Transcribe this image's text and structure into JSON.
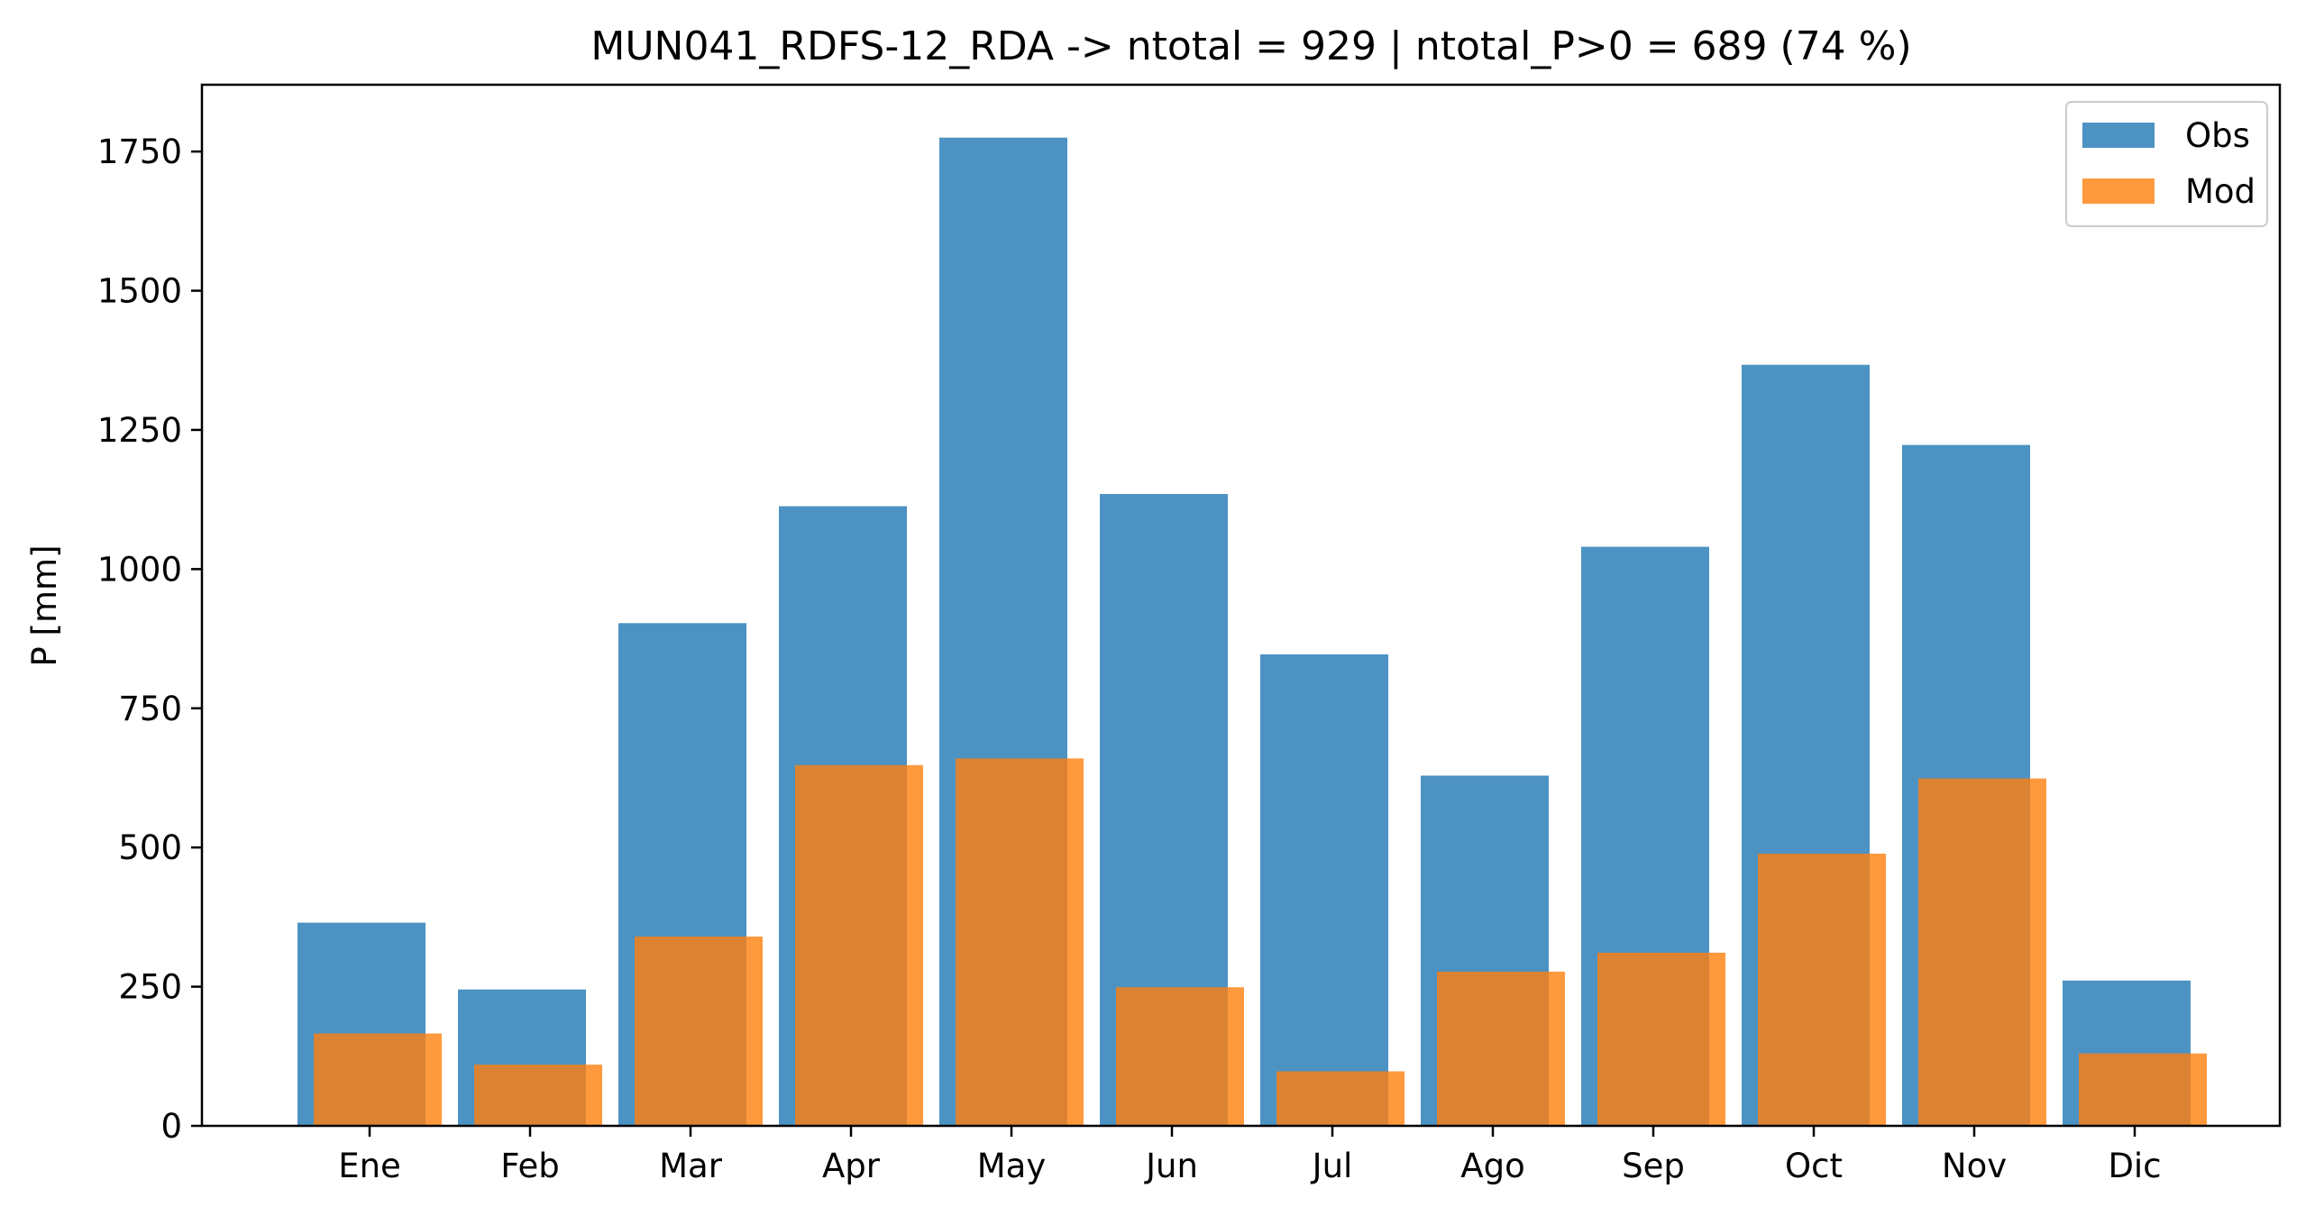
{
  "chart_data": {
    "type": "bar",
    "title": "MUN041_RDFS-12_RDA -> ntotal = 929 | ntotal_P>0 = 689 (74 %)",
    "xlabel": "",
    "ylabel": "P [mm]",
    "categories": [
      "Ene",
      "Feb",
      "Mar",
      "Apr",
      "May",
      "Jun",
      "Jul",
      "Ago",
      "Sep",
      "Oct",
      "Nov",
      "Dic"
    ],
    "series": [
      {
        "name": "Obs",
        "color": "#1f77b4",
        "values": [
          365,
          245,
          903,
          1113,
          1775,
          1135,
          847,
          629,
          1040,
          1367,
          1223,
          261
        ]
      },
      {
        "name": "Mod",
        "color": "#ff7f0e",
        "values": [
          166,
          110,
          340,
          648,
          660,
          249,
          98,
          277,
          311,
          489,
          624,
          130
        ]
      }
    ],
    "ylim": [
      0,
      1870
    ],
    "yticks": [
      0,
      250,
      500,
      750,
      1000,
      1250,
      1500,
      1750
    ],
    "grid": false,
    "legend_position": "top-right"
  }
}
